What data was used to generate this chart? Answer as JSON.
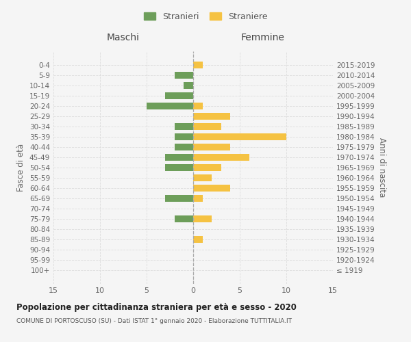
{
  "age_groups": [
    "100+",
    "95-99",
    "90-94",
    "85-89",
    "80-84",
    "75-79",
    "70-74",
    "65-69",
    "60-64",
    "55-59",
    "50-54",
    "45-49",
    "40-44",
    "35-39",
    "30-34",
    "25-29",
    "20-24",
    "15-19",
    "10-14",
    "5-9",
    "0-4"
  ],
  "birth_years": [
    "≤ 1919",
    "1920-1924",
    "1925-1929",
    "1930-1934",
    "1935-1939",
    "1940-1944",
    "1945-1949",
    "1950-1954",
    "1955-1959",
    "1960-1964",
    "1965-1969",
    "1970-1974",
    "1975-1979",
    "1980-1984",
    "1985-1989",
    "1990-1994",
    "1995-1999",
    "2000-2004",
    "2005-2009",
    "2010-2014",
    "2015-2019"
  ],
  "maschi": [
    0,
    0,
    0,
    0,
    0,
    2,
    0,
    3,
    0,
    0,
    3,
    3,
    2,
    2,
    2,
    0,
    5,
    3,
    1,
    2,
    0
  ],
  "femmine": [
    0,
    0,
    0,
    1,
    0,
    2,
    0,
    1,
    4,
    2,
    3,
    6,
    4,
    10,
    3,
    4,
    1,
    0,
    0,
    0,
    1
  ],
  "maschi_color": "#6d9e5a",
  "femmine_color": "#f5c242",
  "title": "Popolazione per cittadinanza straniera per età e sesso - 2020",
  "subtitle": "COMUNE DI PORTOSCUSO (SU) - Dati ISTAT 1° gennaio 2020 - Elaborazione TUTTITALIA.IT",
  "ylabel_left": "Fasce di età",
  "ylabel_right": "Anni di nascita",
  "xlabel_maschi": "Maschi",
  "xlabel_femmine": "Femmine",
  "legend_maschi": "Stranieri",
  "legend_femmine": "Straniere",
  "xlim": [
    -15,
    15
  ],
  "xticks": [
    -15,
    -10,
    -5,
    0,
    5,
    10,
    15
  ],
  "xticklabels": [
    "15",
    "10",
    "5",
    "0",
    "5",
    "10",
    "15"
  ],
  "background_color": "#f5f5f5",
  "grid_color": "#dddddd"
}
